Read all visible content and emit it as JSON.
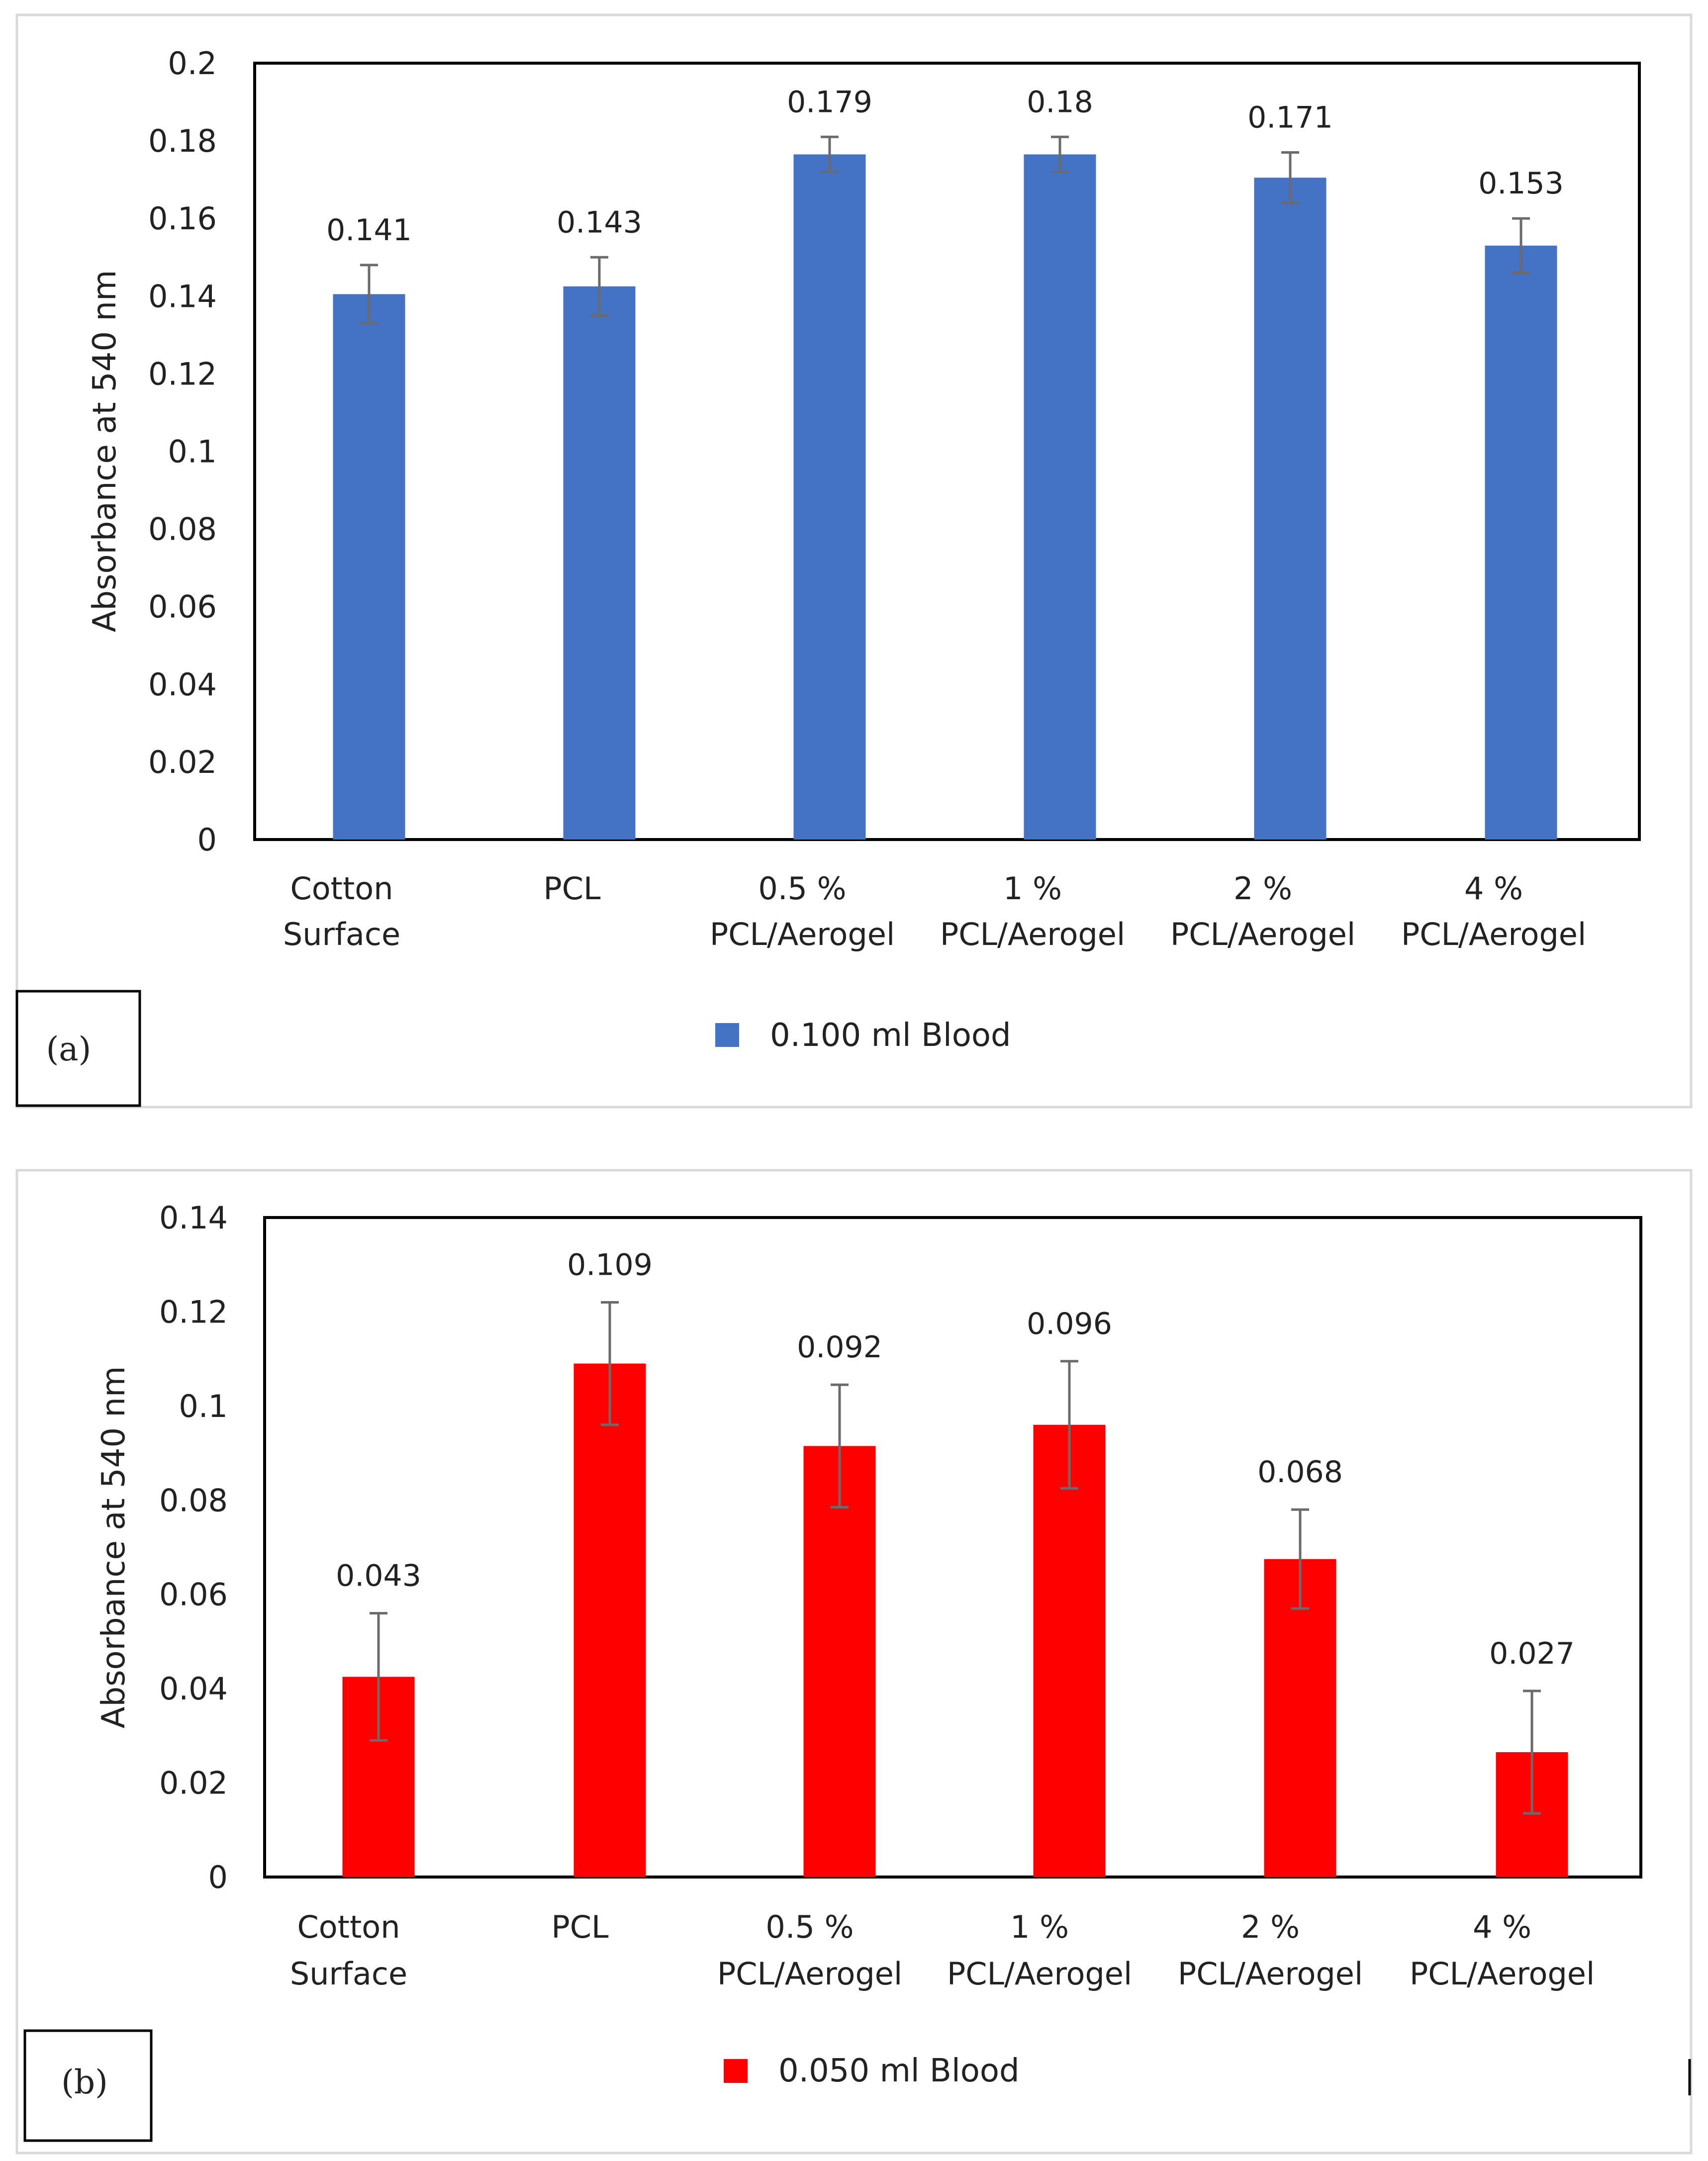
{
  "colors": {
    "panel_a_bar": "#4472C4",
    "panel_b_bar": "#FF0000",
    "error_bar": "#6b6b6b",
    "frame": "#000000",
    "panel_border": "#d9d9d9",
    "text": "#222222"
  },
  "chart_data": [
    {
      "panel_label": "(a)",
      "type": "bar",
      "title": "",
      "xlabel": "",
      "ylabel": "Absorbance at 540 nm",
      "ylim": [
        0,
        0.2
      ],
      "ytick_step": 0.02,
      "ytick_labels": [
        "0",
        "0.02",
        "0.04",
        "0.06",
        "0.08",
        "0.1",
        "0.12",
        "0.14",
        "0.16",
        "0.18",
        "0.2"
      ],
      "grid": false,
      "legend": "bottom-center",
      "categories": [
        [
          "Cotton",
          "Surface"
        ],
        [
          "PCL"
        ],
        [
          "0.5 %",
          "PCL/Aerogel"
        ],
        [
          "1 %",
          "PCL/Aerogel"
        ],
        [
          "2 %",
          "PCL/Aerogel"
        ],
        [
          "4 %",
          "PCL/Aerogel"
        ]
      ],
      "series": [
        {
          "name": "0.100 ml Blood",
          "values": [
            0.141,
            0.143,
            0.179,
            0.18,
            0.171,
            0.153
          ],
          "bar_heights": [
            0.1405,
            0.1425,
            0.1765,
            0.1765,
            0.1705,
            0.153
          ],
          "errors": [
            0.0075,
            0.0075,
            0.0045,
            0.0045,
            0.0065,
            0.007
          ],
          "data_labels": [
            "0.141",
            "0.143",
            "0.179",
            "0.18",
            "0.171",
            "0.153"
          ]
        }
      ]
    },
    {
      "panel_label": "(b)",
      "type": "bar",
      "title": "",
      "xlabel": "",
      "ylabel": "Absorbance at 540 nm",
      "ylim": [
        0,
        0.14
      ],
      "ytick_step": 0.02,
      "ytick_labels": [
        "0",
        "0.02",
        "0.04",
        "0.06",
        "0.08",
        "0.1",
        "0.12",
        "0.14"
      ],
      "grid": false,
      "legend": "bottom-center",
      "categories": [
        [
          "Cotton",
          "Surface"
        ],
        [
          "PCL"
        ],
        [
          "0.5 %",
          "PCL/Aerogel"
        ],
        [
          "1 %",
          "PCL/Aerogel"
        ],
        [
          "2 %",
          "PCL/Aerogel"
        ],
        [
          "4 %",
          "PCL/Aerogel"
        ]
      ],
      "series": [
        {
          "name": "0.050 ml Blood",
          "values": [
            0.043,
            0.109,
            0.092,
            0.096,
            0.068,
            0.027
          ],
          "bar_heights": [
            0.0425,
            0.109,
            0.0915,
            0.096,
            0.0675,
            0.0265
          ],
          "errors": [
            0.0135,
            0.013,
            0.013,
            0.0135,
            0.0105,
            0.013
          ],
          "data_labels": [
            "0.043",
            "0.109",
            "0.092",
            "0.096",
            "0.068",
            "0.027"
          ]
        }
      ]
    }
  ]
}
